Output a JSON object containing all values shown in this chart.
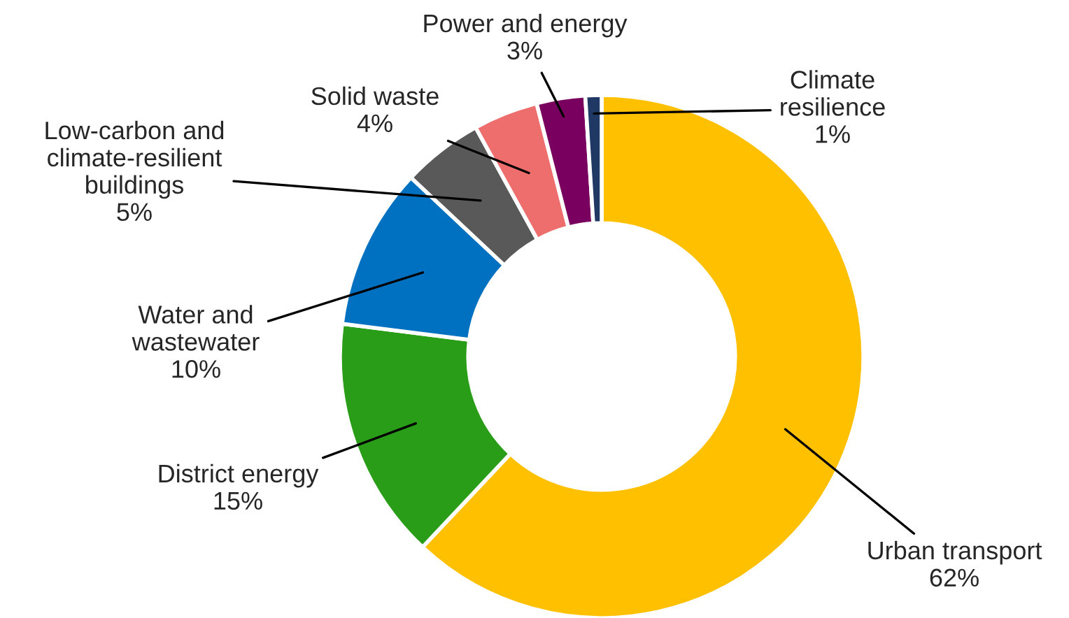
{
  "chart_data": {
    "type": "donut",
    "categories": [
      "Urban transport",
      "District energy",
      "Water and\nwastewater",
      "Low-carbon and\nclimate-resilient\nbuildings",
      "Solid waste",
      "Power and energy",
      "Climate\nresilience"
    ],
    "values": [
      62,
      15,
      10,
      5,
      4,
      3,
      1
    ],
    "colors": [
      "#ffc000",
      "#2a9d18",
      "#0070c0",
      "#595959",
      "#ee6e6e",
      "#7a0060",
      "#1f3864"
    ],
    "value_labels": [
      "62%",
      "15%",
      "10%",
      "5%",
      "4%",
      "3%",
      "1%"
    ],
    "legend": false
  }
}
